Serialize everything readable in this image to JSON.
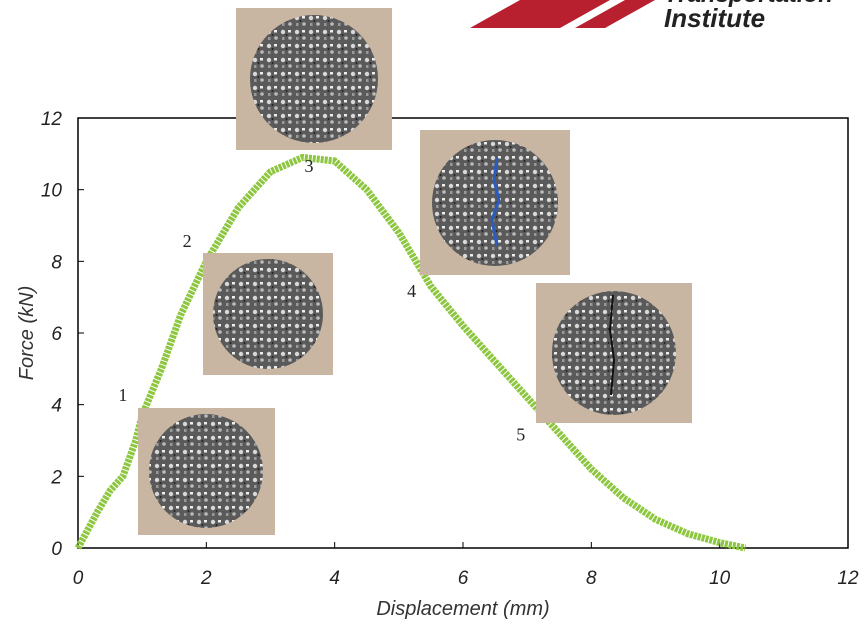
{
  "logo": {
    "line1": "Transportation",
    "line2": "Institute"
  },
  "chart_data": {
    "type": "line",
    "xlabel": "Displacement (mm)",
    "ylabel": "Force (kN)",
    "x": [
      0,
      0.3,
      0.5,
      0.7,
      0.9,
      1,
      1.3,
      1.6,
      2,
      2.5,
      3,
      3.5,
      4,
      4.5,
      5,
      5.5,
      6,
      6.5,
      7,
      7.5,
      8,
      8.5,
      9,
      9.5,
      10,
      10.4
    ],
    "values": [
      0,
      1,
      1.6,
      2,
      3,
      3.7,
      5,
      6.5,
      8,
      9.5,
      10.5,
      10.9,
      10.8,
      10,
      8.8,
      7.3,
      6.2,
      5.2,
      4.2,
      3.2,
      2.2,
      1.4,
      0.8,
      0.4,
      0.15,
      0
    ],
    "color": "#8dc63f",
    "xlim": [
      0,
      12
    ],
    "ylim": [
      0,
      12
    ],
    "xticks": [
      0,
      2,
      4,
      6,
      8,
      10,
      12
    ],
    "yticks": [
      0,
      2,
      4,
      6,
      8,
      10,
      12
    ],
    "annotations": [
      {
        "text": "1",
        "x": 0.7,
        "y": 4.1
      },
      {
        "text": "2",
        "x": 1.7,
        "y": 8.4
      },
      {
        "text": "3",
        "x": 3.6,
        "y": 10.5
      },
      {
        "text": "4",
        "x": 5.2,
        "y": 7
      },
      {
        "text": "5",
        "x": 6.9,
        "y": 3
      }
    ]
  }
}
